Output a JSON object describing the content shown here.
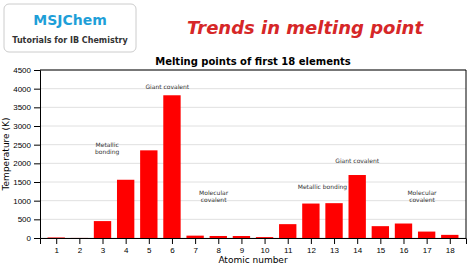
{
  "chart_data": {
    "type": "bar",
    "title": "Melting points of first 18 elements",
    "subtitle": "Trends in melting point",
    "watermark": [
      "MSJChem",
      "Tutorials for IB Chemistry"
    ],
    "xlabel": "Atomic number",
    "ylabel": "Temperature (K)",
    "x": [
      1,
      2,
      3,
      4,
      5,
      6,
      7,
      8,
      9,
      10,
      11,
      12,
      13,
      14,
      15,
      16,
      17,
      18
    ],
    "values": [
      14,
      2,
      453,
      1560,
      2348,
      3823,
      63,
      54,
      53,
      24,
      371,
      923,
      933,
      1687,
      317,
      388,
      172,
      84
    ],
    "color": "#ff0000",
    "xlim": [
      0.3,
      18.7
    ],
    "xticks": [
      1,
      2,
      3,
      4,
      5,
      6,
      7,
      8,
      9,
      10,
      11,
      12,
      13,
      14,
      15,
      16,
      17,
      18
    ],
    "ylim": [
      0,
      4500
    ],
    "yticks": [
      0,
      500,
      1000,
      1500,
      2000,
      2500,
      3000,
      3500,
      4000,
      4500
    ],
    "grid": true,
    "annotations": [
      {
        "text": "Metallic\nbonding",
        "x": 3.2,
        "y": 2200
      },
      {
        "text": "Giant covalent",
        "x": 5.8,
        "y": 3950
      },
      {
        "text": "Molecular\ncovalent",
        "x": 7.8,
        "y": 900
      },
      {
        "text": "Metallic bonding",
        "x": 12.5,
        "y": 1250
      },
      {
        "text": "Giant covalent",
        "x": 14.0,
        "y": 1950
      },
      {
        "text": "Molecular\ncovalent",
        "x": 16.8,
        "y": 900
      }
    ]
  }
}
